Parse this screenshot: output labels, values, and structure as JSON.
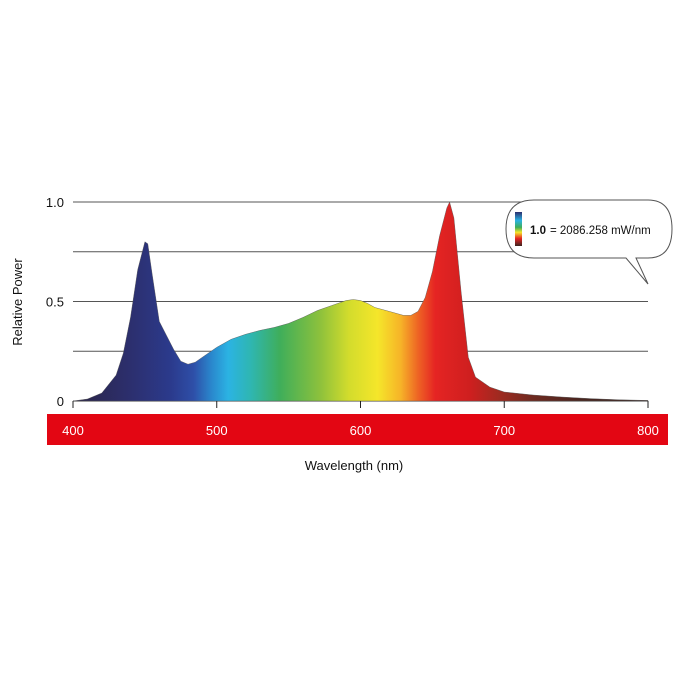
{
  "chart_data": {
    "type": "area",
    "title": "",
    "xlabel": "Wavelength (nm)",
    "ylabel": "Relative Power",
    "xlim": [
      400,
      800
    ],
    "ylim": [
      0,
      1.0
    ],
    "x_ticks": [
      "400",
      "500",
      "600",
      "700",
      "800"
    ],
    "x_tick_values": [
      400,
      500,
      600,
      700,
      800
    ],
    "y_ticks": [
      "0",
      "0.5",
      "1.0"
    ],
    "y_tick_values": [
      0,
      0.5,
      1.0
    ],
    "gridlines_y": [
      0.25,
      0.5,
      0.75,
      1.0
    ],
    "grid": true,
    "x_axis_band_color": "#e30613",
    "series": [
      {
        "x": [
          400,
          410,
          420,
          430,
          435,
          440,
          445,
          450,
          452,
          455,
          460,
          465,
          470,
          475,
          480,
          485,
          490,
          500,
          510,
          520,
          530,
          540,
          550,
          560,
          570,
          580,
          590,
          595,
          600,
          605,
          610,
          620,
          630,
          635,
          640,
          645,
          650,
          655,
          660,
          662,
          665,
          670,
          675,
          680,
          690,
          700,
          720,
          740,
          760,
          780,
          800
        ],
        "y": [
          0.0,
          0.01,
          0.04,
          0.13,
          0.24,
          0.42,
          0.66,
          0.8,
          0.79,
          0.64,
          0.4,
          0.33,
          0.26,
          0.2,
          0.185,
          0.195,
          0.22,
          0.27,
          0.31,
          0.335,
          0.355,
          0.37,
          0.39,
          0.42,
          0.455,
          0.48,
          0.505,
          0.51,
          0.505,
          0.49,
          0.47,
          0.45,
          0.43,
          0.43,
          0.45,
          0.52,
          0.65,
          0.83,
          0.97,
          1.0,
          0.92,
          0.55,
          0.22,
          0.12,
          0.07,
          0.045,
          0.03,
          0.02,
          0.012,
          0.006,
          0.003
        ]
      }
    ],
    "annotation": {
      "value": "1.0",
      "text": "= 2086.258 mW/nm",
      "position": "top-right"
    }
  }
}
